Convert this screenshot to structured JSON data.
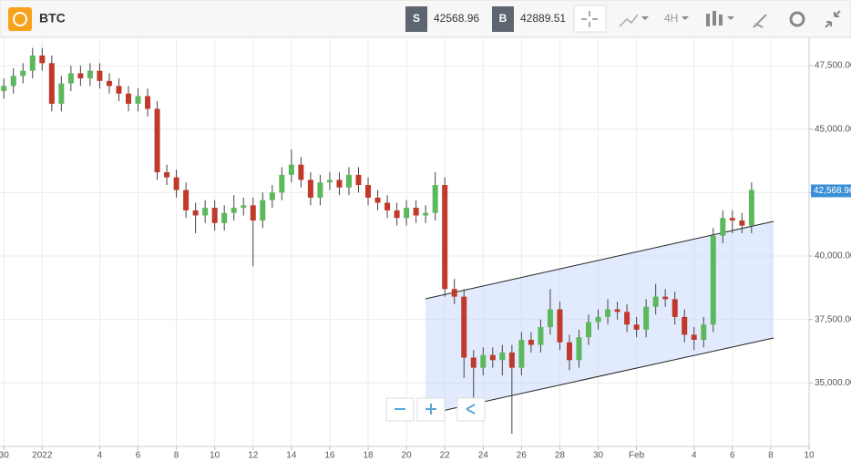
{
  "header": {
    "symbol": "BTC",
    "sell_label": "S",
    "sell_price": 42568.96,
    "buy_label": "B",
    "buy_price": 42889.51,
    "interval": "4H"
  },
  "chart_data": {
    "type": "candlestick",
    "x": [
      -2,
      -1.5,
      -1,
      -0.5,
      0,
      0.5,
      1,
      1.5,
      2,
      2.5,
      3,
      3.5,
      4,
      4.5,
      5,
      5.5,
      6,
      6.5,
      7,
      7.5,
      8,
      8.5,
      9,
      9.5,
      10,
      10.5,
      11,
      11.5,
      12,
      12.5,
      13,
      13.5,
      14,
      14.5,
      15,
      15.5,
      16,
      16.5,
      17,
      17.5,
      18,
      18.5,
      19,
      19.5,
      20,
      20.5,
      21,
      21.5,
      22,
      22.5,
      23,
      23.5,
      24,
      24.5,
      25,
      25.5,
      26,
      26.5,
      27,
      27.5,
      28,
      28.5,
      29,
      29.5,
      30,
      30.5,
      31,
      31.5,
      32,
      32.5,
      33,
      33.5,
      34,
      34.5,
      35,
      35.5,
      36,
      36.5,
      37
    ],
    "open": [
      46500,
      46700,
      47100,
      47300,
      47900,
      47600,
      46000,
      46800,
      47200,
      47000,
      47300,
      46900,
      46700,
      46400,
      46000,
      46300,
      45800,
      43300,
      43100,
      42600,
      41800,
      41600,
      41900,
      41300,
      41700,
      41900,
      42000,
      41400,
      42200,
      42500,
      43200,
      43600,
      43000,
      42300,
      42900,
      43000,
      42700,
      43200,
      42800,
      42300,
      42100,
      41800,
      41500,
      41900,
      41600,
      41700,
      42800,
      38700,
      38400,
      36000,
      35600,
      36100,
      35900,
      36200,
      35600,
      36700,
      36500,
      37200,
      37900,
      36600,
      35900,
      36800,
      37400,
      37600,
      37900,
      37800,
      37300,
      37100,
      38000,
      38400,
      38300,
      37600,
      36900,
      36700,
      37300,
      40800,
      41500,
      41400,
      41200
    ],
    "high": [
      47000,
      47400,
      47600,
      48200,
      48200,
      47900,
      47100,
      47500,
      47500,
      47600,
      47600,
      47200,
      47000,
      46700,
      46600,
      46600,
      46100,
      43600,
      43400,
      42900,
      42100,
      42200,
      42200,
      42000,
      42400,
      42300,
      42300,
      42500,
      42800,
      43500,
      44200,
      43900,
      43300,
      43200,
      43300,
      43300,
      43500,
      43500,
      43100,
      42600,
      42400,
      42100,
      42200,
      42200,
      42000,
      43300,
      43100,
      39100,
      38700,
      36300,
      36400,
      36400,
      36500,
      36500,
      37000,
      37000,
      37500,
      38700,
      38200,
      36900,
      37100,
      37700,
      37900,
      38300,
      38200,
      38100,
      37600,
      38300,
      38900,
      38700,
      38600,
      37900,
      37200,
      37600,
      41100,
      41800,
      41800,
      41700,
      42900
    ],
    "low": [
      46200,
      46400,
      46800,
      47000,
      47300,
      45700,
      45700,
      46500,
      46700,
      46700,
      46600,
      46400,
      46100,
      45700,
      45700,
      45500,
      43000,
      42800,
      42300,
      41500,
      40900,
      41300,
      41000,
      41000,
      41400,
      41600,
      39600,
      41100,
      41900,
      42200,
      42900,
      42700,
      42000,
      42000,
      42600,
      42400,
      42400,
      42500,
      42000,
      41800,
      41500,
      41200,
      41200,
      41300,
      41300,
      41400,
      38400,
      38100,
      35200,
      34300,
      35300,
      35600,
      35300,
      33000,
      35300,
      36200,
      36200,
      36900,
      36300,
      35500,
      35600,
      36500,
      37100,
      37300,
      37500,
      37000,
      36800,
      36800,
      37700,
      38000,
      37300,
      36600,
      36300,
      36400,
      37000,
      40500,
      40900,
      40900,
      40900
    ],
    "close": [
      46700,
      47100,
      47300,
      47900,
      47600,
      46000,
      46800,
      47200,
      47000,
      47300,
      46900,
      46700,
      46400,
      46000,
      46300,
      45800,
      43300,
      43100,
      42600,
      41800,
      41600,
      41900,
      41300,
      41700,
      41900,
      42000,
      41400,
      42200,
      42500,
      43200,
      43600,
      43000,
      42300,
      42900,
      43000,
      42700,
      43200,
      42800,
      42300,
      42100,
      41800,
      41500,
      41900,
      41600,
      41700,
      42800,
      38700,
      38400,
      36000,
      35600,
      36100,
      35900,
      36200,
      35600,
      36700,
      36500,
      37200,
      37900,
      36600,
      35900,
      36800,
      37400,
      37600,
      37900,
      37800,
      37300,
      37100,
      38000,
      38400,
      38300,
      37600,
      36900,
      36700,
      37300,
      40800,
      41500,
      41400,
      41200,
      42600
    ],
    "up_color": "#5cb85c",
    "down_color": "#c0392b",
    "xlim": [
      -2.2,
      40
    ],
    "xticks": [
      {
        "value": -2,
        "label": "30"
      },
      {
        "value": 0,
        "label": "2022"
      },
      {
        "value": 3,
        "label": "4"
      },
      {
        "value": 5,
        "label": "6"
      },
      {
        "value": 7,
        "label": "8"
      },
      {
        "value": 9,
        "label": "10"
      },
      {
        "value": 11,
        "label": "12"
      },
      {
        "value": 13,
        "label": "14"
      },
      {
        "value": 15,
        "label": "16"
      },
      {
        "value": 17,
        "label": "18"
      },
      {
        "value": 19,
        "label": "20"
      },
      {
        "value": 21,
        "label": "22"
      },
      {
        "value": 23,
        "label": "24"
      },
      {
        "value": 25,
        "label": "26"
      },
      {
        "value": 27,
        "label": "28"
      },
      {
        "value": 29,
        "label": "30"
      },
      {
        "value": 31,
        "label": "Feb"
      },
      {
        "value": 34,
        "label": "4"
      },
      {
        "value": 36,
        "label": "6"
      },
      {
        "value": 38,
        "label": "8"
      },
      {
        "value": 40,
        "label": "10"
      }
    ],
    "ylim": [
      32500,
      48580
    ],
    "yticks": [
      {
        "value": 35000,
        "label": "35,000.00"
      },
      {
        "value": 37500,
        "label": "37,500.00"
      },
      {
        "value": 40000,
        "label": "40,000.00"
      },
      {
        "value": 42500,
        "label": "42,500.00"
      },
      {
        "value": 45000,
        "label": "45,000.00"
      },
      {
        "value": 47500,
        "label": "47,500.00"
      }
    ],
    "last_price": {
      "value": 42568.96,
      "label": "42,568.96"
    },
    "grid": true
  }
}
